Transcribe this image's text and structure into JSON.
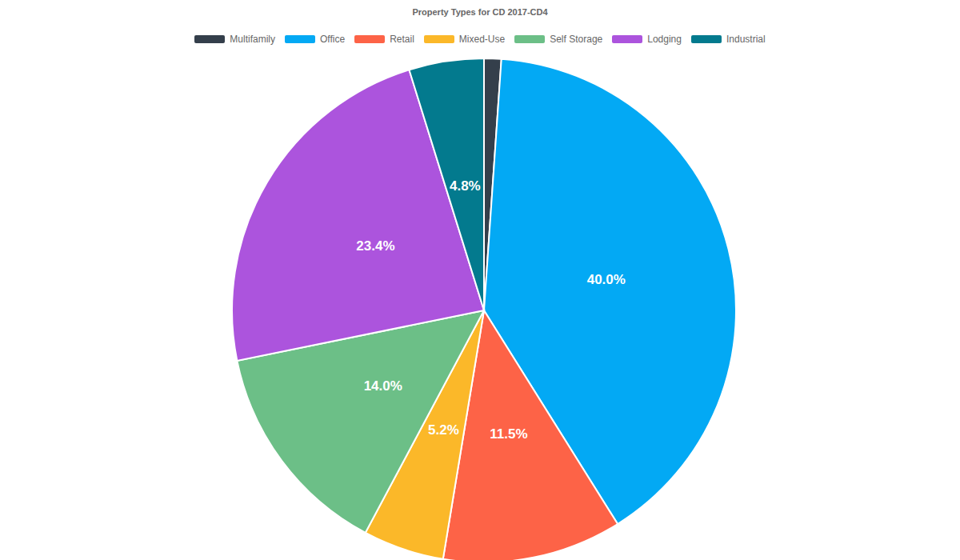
{
  "chart_data": {
    "type": "pie",
    "title": "Property Types for CD 2017-CD4",
    "categories": [
      "Multifamily",
      "Office",
      "Retail",
      "Mixed-Use",
      "Self Storage",
      "Lodging",
      "Industrial"
    ],
    "values": [
      1.1,
      40.0,
      11.5,
      5.2,
      14.0,
      23.4,
      4.8
    ],
    "value_labels": [
      null,
      "40.0%",
      "11.5%",
      "5.2%",
      "14.0%",
      "23.4%",
      "4.8%"
    ],
    "colors": [
      "#343f4b",
      "#03a9f4",
      "#fd6347",
      "#fbb829",
      "#6cbf87",
      "#ac54dd",
      "#037a8e"
    ],
    "data_labels": true,
    "legend": "top"
  }
}
